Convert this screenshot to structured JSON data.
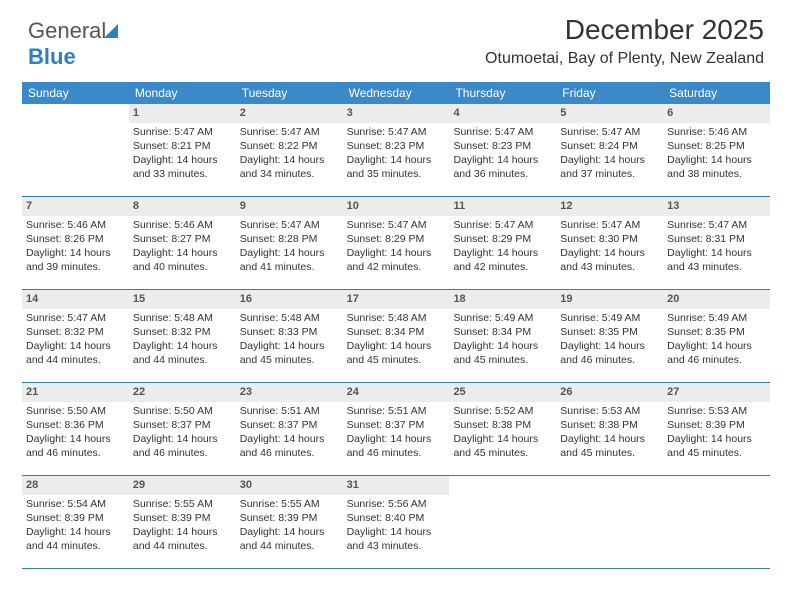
{
  "logo": {
    "text1": "General",
    "text2": "Blue",
    "icon_color": "#2f7fbf"
  },
  "title": "December 2025",
  "location": "Otumoetai, Bay of Plenty, New Zealand",
  "colors": {
    "header_bg": "#3b89c9",
    "header_text": "#ffffff",
    "daynum_bg": "#ececec",
    "daynum_text": "#555555",
    "body_text": "#333333",
    "week_divider": "#2f7fbf"
  },
  "dow": [
    "Sunday",
    "Monday",
    "Tuesday",
    "Wednesday",
    "Thursday",
    "Friday",
    "Saturday"
  ],
  "weeks": [
    [
      null,
      {
        "n": "1",
        "sr": "5:47 AM",
        "ss": "8:21 PM",
        "dl": "14 hours and 33 minutes."
      },
      {
        "n": "2",
        "sr": "5:47 AM",
        "ss": "8:22 PM",
        "dl": "14 hours and 34 minutes."
      },
      {
        "n": "3",
        "sr": "5:47 AM",
        "ss": "8:23 PM",
        "dl": "14 hours and 35 minutes."
      },
      {
        "n": "4",
        "sr": "5:47 AM",
        "ss": "8:23 PM",
        "dl": "14 hours and 36 minutes."
      },
      {
        "n": "5",
        "sr": "5:47 AM",
        "ss": "8:24 PM",
        "dl": "14 hours and 37 minutes."
      },
      {
        "n": "6",
        "sr": "5:46 AM",
        "ss": "8:25 PM",
        "dl": "14 hours and 38 minutes."
      }
    ],
    [
      {
        "n": "7",
        "sr": "5:46 AM",
        "ss": "8:26 PM",
        "dl": "14 hours and 39 minutes."
      },
      {
        "n": "8",
        "sr": "5:46 AM",
        "ss": "8:27 PM",
        "dl": "14 hours and 40 minutes."
      },
      {
        "n": "9",
        "sr": "5:47 AM",
        "ss": "8:28 PM",
        "dl": "14 hours and 41 minutes."
      },
      {
        "n": "10",
        "sr": "5:47 AM",
        "ss": "8:29 PM",
        "dl": "14 hours and 42 minutes."
      },
      {
        "n": "11",
        "sr": "5:47 AM",
        "ss": "8:29 PM",
        "dl": "14 hours and 42 minutes."
      },
      {
        "n": "12",
        "sr": "5:47 AM",
        "ss": "8:30 PM",
        "dl": "14 hours and 43 minutes."
      },
      {
        "n": "13",
        "sr": "5:47 AM",
        "ss": "8:31 PM",
        "dl": "14 hours and 43 minutes."
      }
    ],
    [
      {
        "n": "14",
        "sr": "5:47 AM",
        "ss": "8:32 PM",
        "dl": "14 hours and 44 minutes."
      },
      {
        "n": "15",
        "sr": "5:48 AM",
        "ss": "8:32 PM",
        "dl": "14 hours and 44 minutes."
      },
      {
        "n": "16",
        "sr": "5:48 AM",
        "ss": "8:33 PM",
        "dl": "14 hours and 45 minutes."
      },
      {
        "n": "17",
        "sr": "5:48 AM",
        "ss": "8:34 PM",
        "dl": "14 hours and 45 minutes."
      },
      {
        "n": "18",
        "sr": "5:49 AM",
        "ss": "8:34 PM",
        "dl": "14 hours and 45 minutes."
      },
      {
        "n": "19",
        "sr": "5:49 AM",
        "ss": "8:35 PM",
        "dl": "14 hours and 46 minutes."
      },
      {
        "n": "20",
        "sr": "5:49 AM",
        "ss": "8:35 PM",
        "dl": "14 hours and 46 minutes."
      }
    ],
    [
      {
        "n": "21",
        "sr": "5:50 AM",
        "ss": "8:36 PM",
        "dl": "14 hours and 46 minutes."
      },
      {
        "n": "22",
        "sr": "5:50 AM",
        "ss": "8:37 PM",
        "dl": "14 hours and 46 minutes."
      },
      {
        "n": "23",
        "sr": "5:51 AM",
        "ss": "8:37 PM",
        "dl": "14 hours and 46 minutes."
      },
      {
        "n": "24",
        "sr": "5:51 AM",
        "ss": "8:37 PM",
        "dl": "14 hours and 46 minutes."
      },
      {
        "n": "25",
        "sr": "5:52 AM",
        "ss": "8:38 PM",
        "dl": "14 hours and 45 minutes."
      },
      {
        "n": "26",
        "sr": "5:53 AM",
        "ss": "8:38 PM",
        "dl": "14 hours and 45 minutes."
      },
      {
        "n": "27",
        "sr": "5:53 AM",
        "ss": "8:39 PM",
        "dl": "14 hours and 45 minutes."
      }
    ],
    [
      {
        "n": "28",
        "sr": "5:54 AM",
        "ss": "8:39 PM",
        "dl": "14 hours and 44 minutes."
      },
      {
        "n": "29",
        "sr": "5:55 AM",
        "ss": "8:39 PM",
        "dl": "14 hours and 44 minutes."
      },
      {
        "n": "30",
        "sr": "5:55 AM",
        "ss": "8:39 PM",
        "dl": "14 hours and 44 minutes."
      },
      {
        "n": "31",
        "sr": "5:56 AM",
        "ss": "8:40 PM",
        "dl": "14 hours and 43 minutes."
      },
      null,
      null,
      null
    ]
  ],
  "labels": {
    "sunrise": "Sunrise:",
    "sunset": "Sunset:",
    "daylight": "Daylight:"
  }
}
